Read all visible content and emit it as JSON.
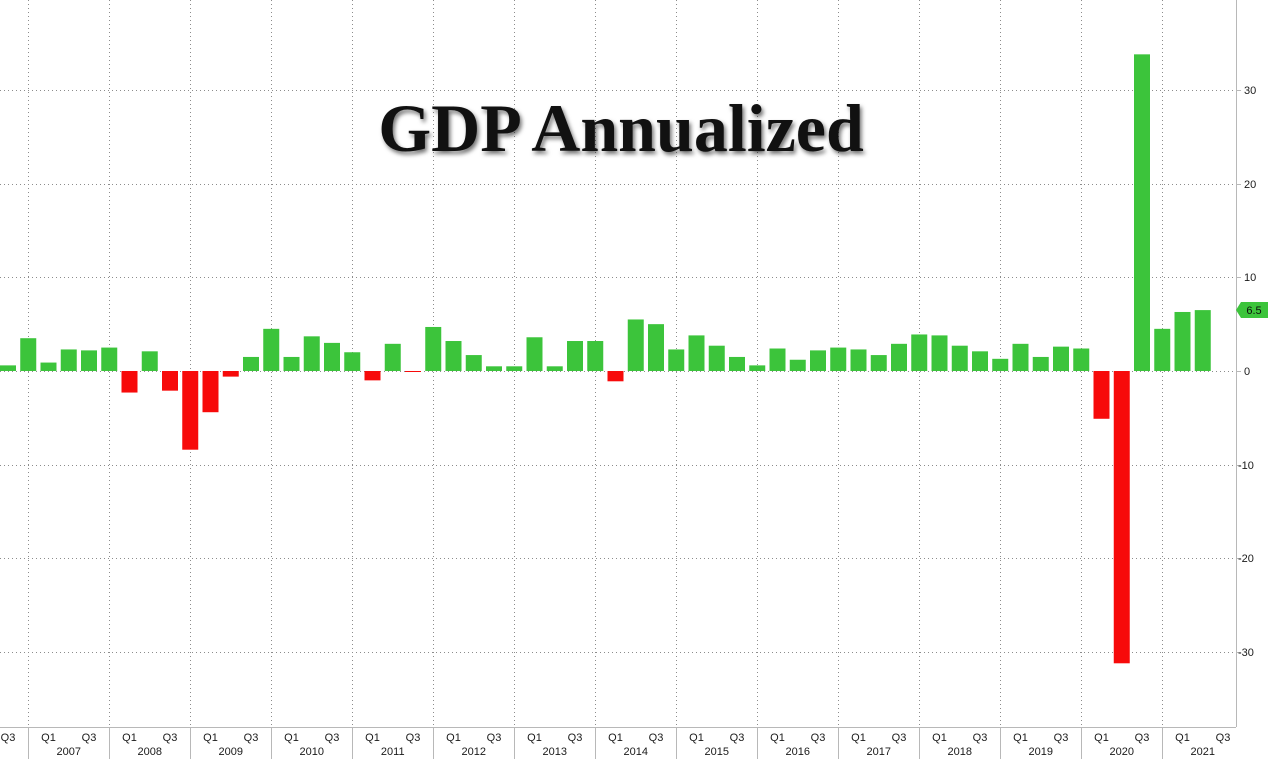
{
  "chart_data": {
    "type": "bar",
    "title": "GDP Annualized",
    "y_axis_position": "right",
    "grid": true,
    "ylim": [
      -38,
      39.6
    ],
    "y_ticks": [
      30,
      20,
      10,
      0,
      -10,
      -20,
      -30
    ],
    "colors": {
      "positive": "#3cc43b",
      "negative": "#f70a0a",
      "grid": "#8c8c8c",
      "last_value_bg": "#3cc43b"
    },
    "points": [
      {
        "year": 2006,
        "q": 3,
        "value": 0.6
      },
      {
        "year": 2006,
        "q": 4,
        "value": 3.5
      },
      {
        "year": 2007,
        "q": 1,
        "value": 0.9
      },
      {
        "year": 2007,
        "q": 2,
        "value": 2.3
      },
      {
        "year": 2007,
        "q": 3,
        "value": 2.2
      },
      {
        "year": 2007,
        "q": 4,
        "value": 2.5
      },
      {
        "year": 2008,
        "q": 1,
        "value": -2.3
      },
      {
        "year": 2008,
        "q": 2,
        "value": 2.1
      },
      {
        "year": 2008,
        "q": 3,
        "value": -2.1
      },
      {
        "year": 2008,
        "q": 4,
        "value": -8.4
      },
      {
        "year": 2009,
        "q": 1,
        "value": -4.4
      },
      {
        "year": 2009,
        "q": 2,
        "value": -0.6
      },
      {
        "year": 2009,
        "q": 3,
        "value": 1.5
      },
      {
        "year": 2009,
        "q": 4,
        "value": 4.5
      },
      {
        "year": 2010,
        "q": 1,
        "value": 1.5
      },
      {
        "year": 2010,
        "q": 2,
        "value": 3.7
      },
      {
        "year": 2010,
        "q": 3,
        "value": 3.0
      },
      {
        "year": 2010,
        "q": 4,
        "value": 2.0
      },
      {
        "year": 2011,
        "q": 1,
        "value": -1.0
      },
      {
        "year": 2011,
        "q": 2,
        "value": 2.9
      },
      {
        "year": 2011,
        "q": 3,
        "value": -0.1
      },
      {
        "year": 2011,
        "q": 4,
        "value": 4.7
      },
      {
        "year": 2012,
        "q": 1,
        "value": 3.2
      },
      {
        "year": 2012,
        "q": 2,
        "value": 1.7
      },
      {
        "year": 2012,
        "q": 3,
        "value": 0.5
      },
      {
        "year": 2012,
        "q": 4,
        "value": 0.5
      },
      {
        "year": 2013,
        "q": 1,
        "value": 3.6
      },
      {
        "year": 2013,
        "q": 2,
        "value": 0.5
      },
      {
        "year": 2013,
        "q": 3,
        "value": 3.2
      },
      {
        "year": 2013,
        "q": 4,
        "value": 3.2
      },
      {
        "year": 2014,
        "q": 1,
        "value": -1.1
      },
      {
        "year": 2014,
        "q": 2,
        "value": 5.5
      },
      {
        "year": 2014,
        "q": 3,
        "value": 5.0
      },
      {
        "year": 2014,
        "q": 4,
        "value": 2.3
      },
      {
        "year": 2015,
        "q": 1,
        "value": 3.8
      },
      {
        "year": 2015,
        "q": 2,
        "value": 2.7
      },
      {
        "year": 2015,
        "q": 3,
        "value": 1.5
      },
      {
        "year": 2015,
        "q": 4,
        "value": 0.6
      },
      {
        "year": 2016,
        "q": 1,
        "value": 2.4
      },
      {
        "year": 2016,
        "q": 2,
        "value": 1.2
      },
      {
        "year": 2016,
        "q": 3,
        "value": 2.2
      },
      {
        "year": 2016,
        "q": 4,
        "value": 2.5
      },
      {
        "year": 2017,
        "q": 1,
        "value": 2.3
      },
      {
        "year": 2017,
        "q": 2,
        "value": 1.7
      },
      {
        "year": 2017,
        "q": 3,
        "value": 2.9
      },
      {
        "year": 2017,
        "q": 4,
        "value": 3.9
      },
      {
        "year": 2018,
        "q": 1,
        "value": 3.8
      },
      {
        "year": 2018,
        "q": 2,
        "value": 2.7
      },
      {
        "year": 2018,
        "q": 3,
        "value": 2.1
      },
      {
        "year": 2018,
        "q": 4,
        "value": 1.3
      },
      {
        "year": 2019,
        "q": 1,
        "value": 2.9
      },
      {
        "year": 2019,
        "q": 2,
        "value": 1.5
      },
      {
        "year": 2019,
        "q": 3,
        "value": 2.6
      },
      {
        "year": 2019,
        "q": 4,
        "value": 2.4
      },
      {
        "year": 2020,
        "q": 1,
        "value": -5.1
      },
      {
        "year": 2020,
        "q": 2,
        "value": -31.2
      },
      {
        "year": 2020,
        "q": 3,
        "value": 33.8
      },
      {
        "year": 2020,
        "q": 4,
        "value": 4.5
      },
      {
        "year": 2021,
        "q": 1,
        "value": 6.3
      },
      {
        "year": 2021,
        "q": 2,
        "value": 6.5
      }
    ],
    "x_ticks": [
      {
        "year": 2006,
        "q": 3,
        "label": "Q3"
      },
      {
        "year": 2007,
        "q": 1,
        "label": "Q1"
      },
      {
        "year": 2007,
        "q": 3,
        "label": "Q3"
      },
      {
        "year": 2008,
        "q": 1,
        "label": "Q1"
      },
      {
        "year": 2008,
        "q": 3,
        "label": "Q3"
      },
      {
        "year": 2009,
        "q": 1,
        "label": "Q1"
      },
      {
        "year": 2009,
        "q": 3,
        "label": "Q3"
      },
      {
        "year": 2010,
        "q": 1,
        "label": "Q1"
      },
      {
        "year": 2010,
        "q": 3,
        "label": "Q3"
      },
      {
        "year": 2011,
        "q": 1,
        "label": "Q1"
      },
      {
        "year": 2011,
        "q": 3,
        "label": "Q3"
      },
      {
        "year": 2012,
        "q": 1,
        "label": "Q1"
      },
      {
        "year": 2012,
        "q": 3,
        "label": "Q3"
      },
      {
        "year": 2013,
        "q": 1,
        "label": "Q1"
      },
      {
        "year": 2013,
        "q": 3,
        "label": "Q3"
      },
      {
        "year": 2014,
        "q": 1,
        "label": "Q1"
      },
      {
        "year": 2014,
        "q": 3,
        "label": "Q3"
      },
      {
        "year": 2015,
        "q": 1,
        "label": "Q1"
      },
      {
        "year": 2015,
        "q": 3,
        "label": "Q3"
      },
      {
        "year": 2016,
        "q": 1,
        "label": "Q1"
      },
      {
        "year": 2016,
        "q": 3,
        "label": "Q3"
      },
      {
        "year": 2017,
        "q": 1,
        "label": "Q1"
      },
      {
        "year": 2017,
        "q": 3,
        "label": "Q3"
      },
      {
        "year": 2018,
        "q": 1,
        "label": "Q1"
      },
      {
        "year": 2018,
        "q": 3,
        "label": "Q3"
      },
      {
        "year": 2019,
        "q": 1,
        "label": "Q1"
      },
      {
        "year": 2019,
        "q": 3,
        "label": "Q3"
      },
      {
        "year": 2020,
        "q": 1,
        "label": "Q1"
      },
      {
        "year": 2020,
        "q": 3,
        "label": "Q3"
      },
      {
        "year": 2021,
        "q": 1,
        "label": "Q1"
      },
      {
        "year": 2021,
        "q": 3,
        "label": "Q3"
      }
    ],
    "year_labels": [
      "2007",
      "2008",
      "2009",
      "2010",
      "2011",
      "2012",
      "2013",
      "2014",
      "2015",
      "2016",
      "2017",
      "2018",
      "2019",
      "2020",
      "2021"
    ],
    "last_value_label": "6.5"
  }
}
